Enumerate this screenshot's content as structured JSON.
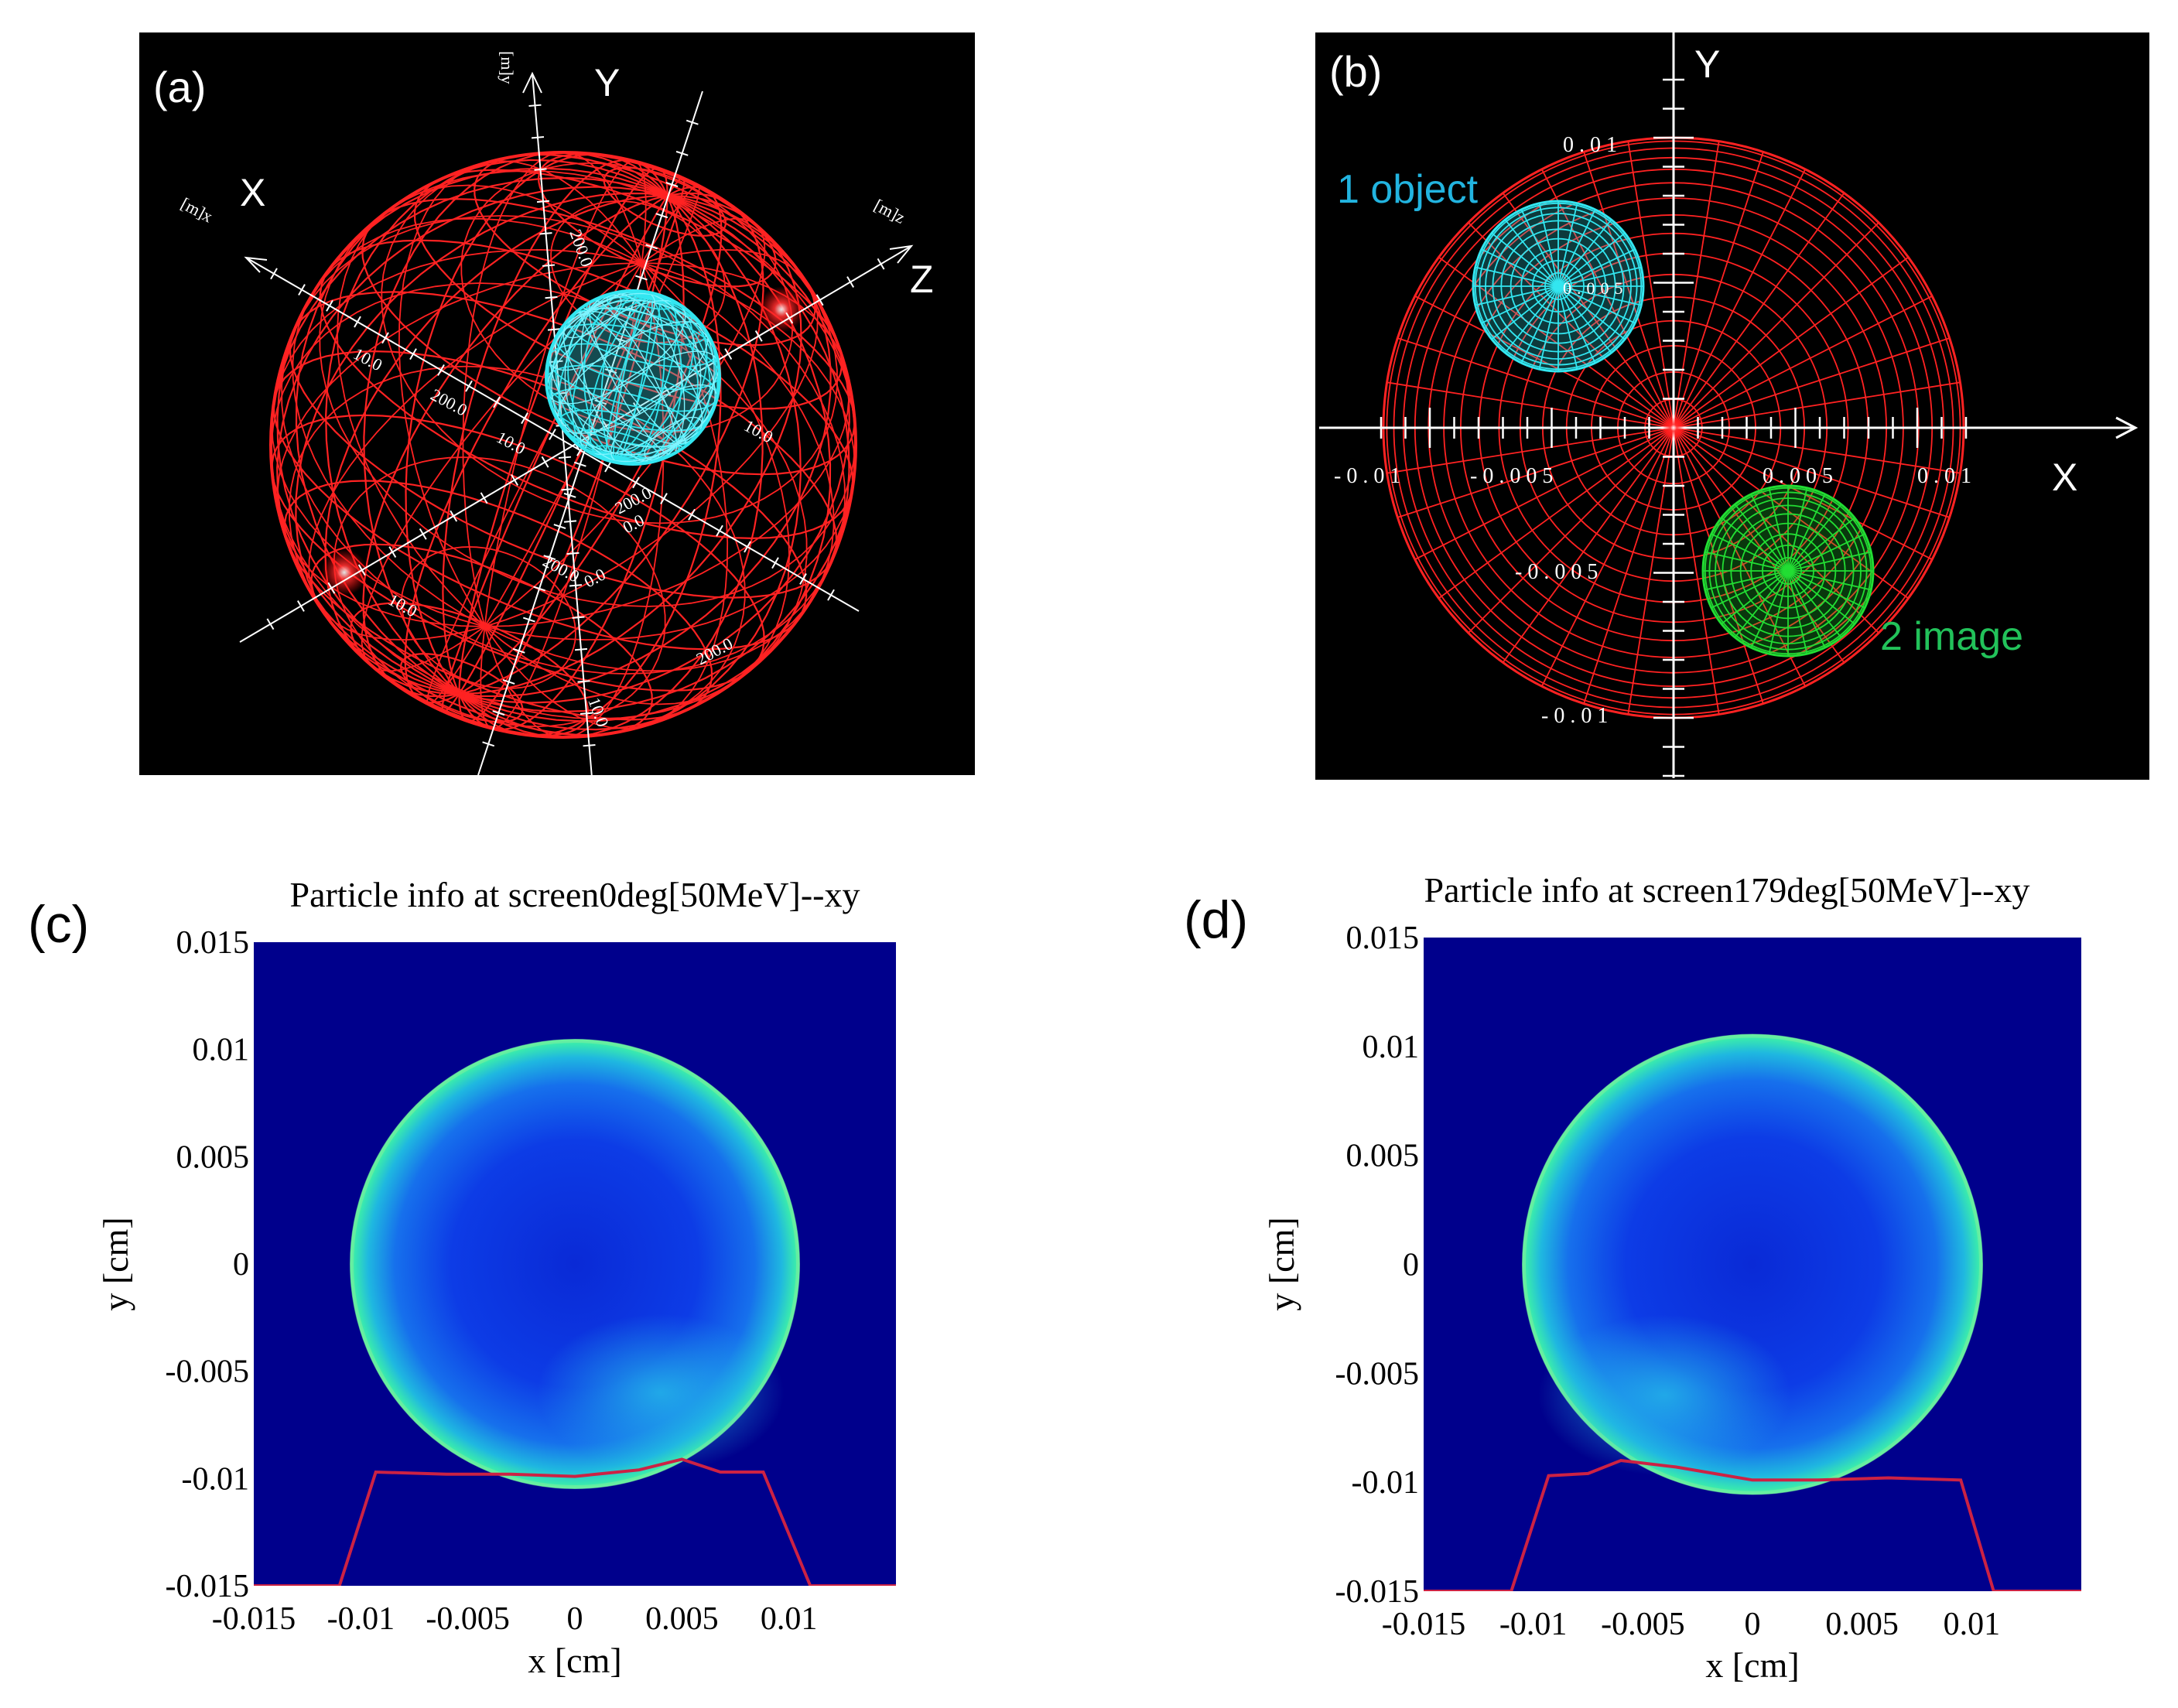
{
  "panel_a": {
    "letter": "(a)",
    "axis_x": "X",
    "axis_y": "Y",
    "axis_z": "Z",
    "unit_x": "[m]x",
    "unit_y": "[m]y",
    "unit_z": "[m]z",
    "tick_labels": [
      "10.0",
      "200.0",
      "10.0",
      "200.0",
      "10.0",
      "200.0",
      "0.0",
      "0.0",
      "200.0",
      "200.0",
      "10.0",
      "10.0"
    ],
    "colors": {
      "background": "#000000",
      "sphere": "#ff2222",
      "object": "#33e6f0",
      "axes": "#ffffff"
    }
  },
  "panel_b": {
    "letter": "(b)",
    "axis_x": "X",
    "axis_y": "Y",
    "label_object": "1 object",
    "label_image": "2 image",
    "x_ticks": [
      "-0.01",
      "-0.005",
      "0.005",
      "0.01"
    ],
    "y_ticks": [
      "0.01",
      "-0.005",
      "-0.01"
    ],
    "object_tick": "0.005",
    "colors": {
      "background": "#000000",
      "sphere": "#ff2222",
      "object": "#33e6f0",
      "image": "#22dd33",
      "axes": "#ffffff"
    }
  },
  "chart_data": [
    {
      "type": "heatmap",
      "panel": "(c)",
      "title": "Particle info at screen0deg[50MeV]--xy",
      "xlabel": "x [cm]",
      "ylabel": "y [cm]",
      "xlim": [
        -0.015,
        0.015
      ],
      "ylim": [
        -0.015,
        0.015
      ],
      "x_ticks": [
        "-0.015",
        "-0.01",
        "-0.005",
        "0",
        "0.005",
        "0.01"
      ],
      "y_ticks": [
        "0.015",
        "0.01",
        "0.005",
        "0",
        "-0.005",
        "-0.01",
        "-0.015"
      ],
      "disk": {
        "center": [
          0,
          0
        ],
        "radius": 0.0105
      },
      "profile_line": {
        "x": [
          -0.015,
          -0.011,
          -0.0093,
          -0.006,
          -0.003,
          0,
          0.003,
          0.005,
          0.0068,
          0.0088,
          0.011,
          0.015
        ],
        "y": [
          -0.015,
          -0.015,
          -0.0097,
          -0.0098,
          -0.0098,
          -0.0099,
          -0.0096,
          -0.0091,
          -0.0097,
          -0.0097,
          -0.015,
          -0.015
        ]
      }
    },
    {
      "type": "heatmap",
      "panel": "(d)",
      "title": "Particle info at screen179deg[50MeV]--xy",
      "xlabel": "x [cm]",
      "ylabel": "y [cm]",
      "xlim": [
        -0.015,
        0.015
      ],
      "ylim": [
        -0.015,
        0.015
      ],
      "x_ticks": [
        "-0.015",
        "-0.01",
        "-0.005",
        "0",
        "0.005",
        "0.01"
      ],
      "y_ticks": [
        "0.015",
        "0.01",
        "0.005",
        "0",
        "-0.005",
        "-0.01",
        "-0.015"
      ],
      "disk": {
        "center": [
          0,
          0
        ],
        "radius": 0.0105
      },
      "profile_line": {
        "x": [
          -0.015,
          -0.011,
          -0.0093,
          -0.0075,
          -0.006,
          -0.0035,
          0,
          0.003,
          0.0062,
          0.0095,
          0.011,
          0.015
        ],
        "y": [
          -0.015,
          -0.015,
          -0.0097,
          -0.0096,
          -0.009,
          -0.0093,
          -0.0099,
          -0.0099,
          -0.0098,
          -0.0099,
          -0.015,
          -0.015
        ]
      }
    }
  ]
}
